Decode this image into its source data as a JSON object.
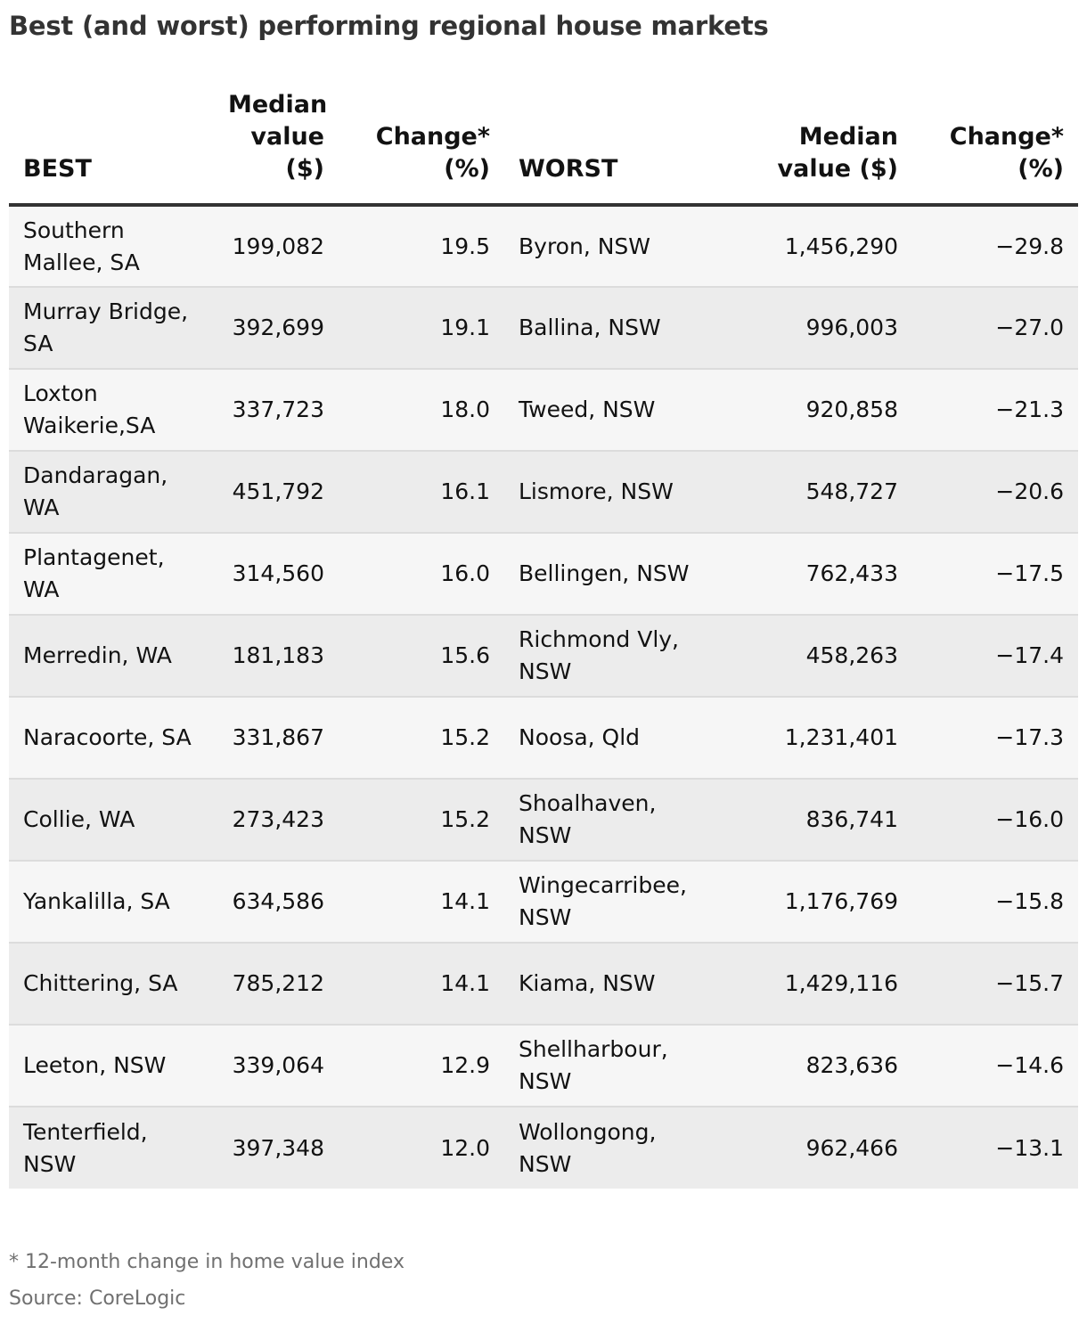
{
  "title": "Best (and worst) performing regional house markets",
  "footnote": "* 12-month change in home value index",
  "source": "Source: CoreLogic",
  "chart_data": {
    "type": "table",
    "title": "Best (and worst) performing regional house markets",
    "columns": [
      "BEST",
      "Median value ($)",
      "Change* (%)",
      "WORST",
      "Median value ($)",
      "Change* (%)"
    ],
    "headers": {
      "best": "BEST",
      "best_median": "Median value ($)",
      "best_change": "Change* (%)",
      "worst": "WORST",
      "worst_median": "Median value ($)",
      "worst_change": "Change* (%)"
    },
    "rows": [
      {
        "best": "Southern Mallee, SA",
        "best_median": "199,082",
        "best_change": "19.5",
        "worst": "Byron, NSW",
        "worst_median": "1,456,290",
        "worst_change": "−29.8"
      },
      {
        "best": "Murray Bridge, SA",
        "best_median": "392,699",
        "best_change": "19.1",
        "worst": "Ballina, NSW",
        "worst_median": "996,003",
        "worst_change": "−27.0"
      },
      {
        "best": "Loxton Waikerie,SA",
        "best_median": "337,723",
        "best_change": "18.0",
        "worst": "Tweed, NSW",
        "worst_median": "920,858",
        "worst_change": "−21.3"
      },
      {
        "best": "Dandaragan, WA",
        "best_median": "451,792",
        "best_change": "16.1",
        "worst": "Lismore, NSW",
        "worst_median": "548,727",
        "worst_change": "−20.6"
      },
      {
        "best": "Plantagenet, WA",
        "best_median": "314,560",
        "best_change": "16.0",
        "worst": "Bellingen, NSW",
        "worst_median": "762,433",
        "worst_change": "−17.5"
      },
      {
        "best": "Merredin, WA",
        "best_median": "181,183",
        "best_change": "15.6",
        "worst": "Richmond Vly, NSW",
        "worst_median": "458,263",
        "worst_change": "−17.4"
      },
      {
        "best": "Naracoorte, SA",
        "best_median": "331,867",
        "best_change": "15.2",
        "worst": "Noosa, Qld",
        "worst_median": "1,231,401",
        "worst_change": "−17.3"
      },
      {
        "best": "Collie, WA",
        "best_median": "273,423",
        "best_change": "15.2",
        "worst": "Shoalhaven, NSW",
        "worst_median": "836,741",
        "worst_change": "−16.0"
      },
      {
        "best": "Yankalilla, SA",
        "best_median": "634,586",
        "best_change": "14.1",
        "worst": "Wingecarribee, NSW",
        "worst_median": "1,176,769",
        "worst_change": "−15.8"
      },
      {
        "best": "Chittering, SA",
        "best_median": "785,212",
        "best_change": "14.1",
        "worst": "Kiama, NSW",
        "worst_median": "1,429,116",
        "worst_change": "−15.7"
      },
      {
        "best": "Leeton, NSW",
        "best_median": "339,064",
        "best_change": "12.9",
        "worst": "Shellharbour, NSW",
        "worst_median": "823,636",
        "worst_change": "−14.6"
      },
      {
        "best": "Tenterfield, NSW",
        "best_median": "397,348",
        "best_change": "12.0",
        "worst": "Wollongong, NSW",
        "worst_median": "962,466",
        "worst_change": "−13.1"
      }
    ]
  }
}
